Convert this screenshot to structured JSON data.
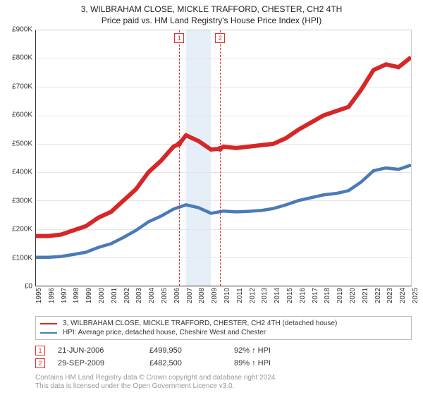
{
  "title": "3, WILBRAHAM CLOSE, MICKLE TRAFFORD, CHESTER, CH2 4TH",
  "subtitle": "Price paid vs. HM Land Registry's House Price Index (HPI)",
  "chart": {
    "type": "line",
    "ylabel_prefix": "£",
    "ylabel_suffix": "K",
    "ylim": [
      0,
      900
    ],
    "ytick_step": 100,
    "yticks": [
      0,
      100,
      200,
      300,
      400,
      500,
      600,
      700,
      800,
      900
    ],
    "xlim": [
      1995,
      2025
    ],
    "xticks": [
      1995,
      1996,
      1997,
      1998,
      1999,
      2000,
      2001,
      2002,
      2003,
      2004,
      2005,
      2006,
      2007,
      2008,
      2009,
      2010,
      2011,
      2012,
      2013,
      2014,
      2015,
      2016,
      2017,
      2018,
      2019,
      2020,
      2021,
      2022,
      2023,
      2024,
      2025
    ],
    "grid_color": "#e5e5e5",
    "background_color": "#ffffff",
    "axis_color": "#333333",
    "label_fontsize": 10,
    "title_fontsize": 12,
    "highlight_band": {
      "start": 2007,
      "end": 2009,
      "color": "#e6eef8"
    },
    "series": [
      {
        "name": "property_price",
        "label": "3, WILBRAHAM CLOSE, MICKLE TRAFFORD, CHESTER, CH2 4TH (detached house)",
        "color": "#d62728",
        "line_width": 2,
        "x": [
          1995,
          1996,
          1997,
          1998,
          1999,
          2000,
          2001,
          2002,
          2003,
          2004,
          2005,
          2006,
          2006.47,
          2007,
          2008,
          2009,
          2009.74,
          2010,
          2011,
          2012,
          2013,
          2014,
          2015,
          2016,
          2017,
          2018,
          2019,
          2020,
          2021,
          2022,
          2023,
          2024,
          2025
        ],
        "y": [
          175,
          175,
          180,
          195,
          210,
          240,
          260,
          300,
          340,
          400,
          440,
          490,
          499.95,
          530,
          510,
          480,
          482.5,
          490,
          485,
          490,
          495,
          500,
          520,
          550,
          575,
          600,
          615,
          630,
          690,
          760,
          780,
          770,
          805
        ]
      },
      {
        "name": "hpi",
        "label": "HPI: Average price, detached house, Cheshire West and Chester",
        "color": "#4a7bb7",
        "line_width": 1.5,
        "x": [
          1995,
          1996,
          1997,
          1998,
          1999,
          2000,
          2001,
          2002,
          2003,
          2004,
          2005,
          2006,
          2007,
          2008,
          2009,
          2010,
          2011,
          2012,
          2013,
          2014,
          2015,
          2016,
          2017,
          2018,
          2019,
          2020,
          2021,
          2022,
          2023,
          2024,
          2025
        ],
        "y": [
          100,
          100,
          103,
          110,
          118,
          135,
          148,
          170,
          195,
          225,
          245,
          270,
          285,
          275,
          255,
          263,
          260,
          262,
          265,
          272,
          285,
          300,
          310,
          320,
          325,
          335,
          365,
          405,
          415,
          410,
          425
        ]
      }
    ],
    "markers": [
      {
        "index": 1,
        "x": 2006.47,
        "y": 499.95,
        "color": "#d62728"
      },
      {
        "index": 2,
        "x": 2009.74,
        "y": 482.5,
        "color": "#d62728"
      }
    ]
  },
  "legend": {
    "items": [
      {
        "color": "#d62728",
        "label": "3, WILBRAHAM CLOSE, MICKLE TRAFFORD, CHESTER, CH2 4TH (detached house)"
      },
      {
        "color": "#4a7bb7",
        "label": "HPI: Average price, detached house, Cheshire West and Chester"
      }
    ]
  },
  "sales": [
    {
      "index": 1,
      "date": "21-JUN-2006",
      "price": "£499,950",
      "pct": "92% ↑ HPI"
    },
    {
      "index": 2,
      "date": "29-SEP-2009",
      "price": "£482,500",
      "pct": "89% ↑ HPI"
    }
  ],
  "footer": {
    "line1": "Contains HM Land Registry data © Crown copyright and database right 2024.",
    "line2": "This data is licensed under the Open Government Licence v3.0."
  }
}
